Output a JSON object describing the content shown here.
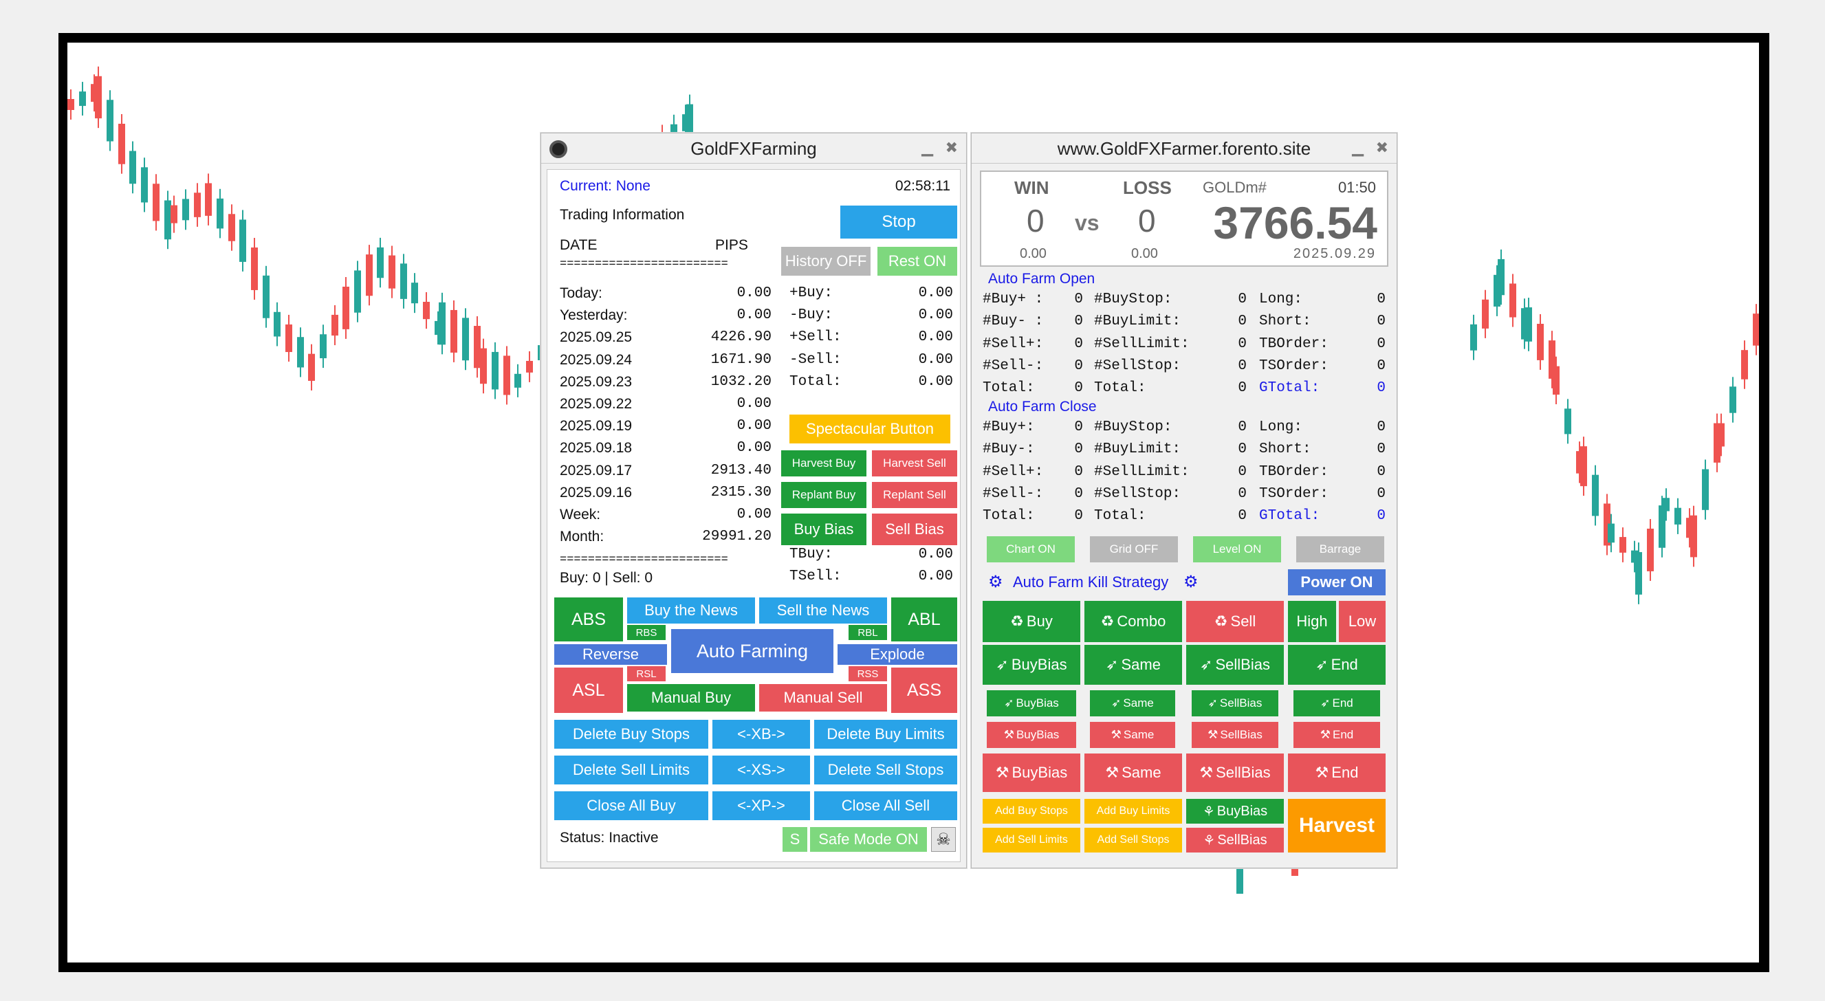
{
  "left_panel": {
    "title": "GoldFXFarming",
    "current": "Current: None",
    "time": "02:58:11",
    "trading_info": "Trading Information",
    "stop": "Stop",
    "col_date": "DATE",
    "col_pips": "PIPS",
    "separator": "========================",
    "history_btn": "History OFF",
    "rest_btn": "Rest ON",
    "rows": [
      {
        "label": "Today:",
        "value": "0.00"
      },
      {
        "label": "Yesterday:",
        "value": "0.00"
      },
      {
        "label": "2025.09.25",
        "value": "4226.90"
      },
      {
        "label": "2025.09.24",
        "value": "1671.90"
      },
      {
        "label": "2025.09.23",
        "value": "1032.20"
      },
      {
        "label": "2025.09.22",
        "value": "0.00"
      },
      {
        "label": "2025.09.19",
        "value": "0.00"
      },
      {
        "label": "2025.09.18",
        "value": "0.00"
      },
      {
        "label": "2025.09.17",
        "value": "2913.40"
      },
      {
        "label": "2025.09.16",
        "value": "2315.30"
      },
      {
        "label": "Week:",
        "value": "0.00"
      },
      {
        "label": "Month:",
        "value": "29991.20"
      }
    ],
    "right_stats": [
      {
        "label": "+Buy:",
        "value": "0.00"
      },
      {
        "label": "-Buy:",
        "value": "0.00"
      },
      {
        "label": "+Sell:",
        "value": "0.00"
      },
      {
        "label": "-Sell:",
        "value": "0.00"
      },
      {
        "label": "Total:",
        "value": "0.00"
      }
    ],
    "spectacular": "Spectacular Button",
    "harvest_buy": "Harvest Buy",
    "harvest_sell": "Harvest Sell",
    "replant_buy": "Replant Buy",
    "replant_sell": "Replant Sell",
    "buy_bias": "Buy Bias",
    "sell_bias": "Sell Bias",
    "tbuy_label": "TBuy:",
    "tbuy": "0.00",
    "tsell_label": "TSell:",
    "tsell": "0.00",
    "buy_sell": "Buy: 0 | Sell: 0",
    "abs": "ABS",
    "abl": "ABL",
    "asl": "ASL",
    "ass": "ASS",
    "buy_news": "Buy the News",
    "sell_news": "Sell the News",
    "rbs": "RBS",
    "rbl": "RBL",
    "rsl": "RSL",
    "rss": "RSS",
    "reverse": "Reverse",
    "explode": "Explode",
    "auto_farming": "Auto Farming",
    "manual_buy": "Manual Buy",
    "manual_sell": "Manual Sell",
    "del_buy_stops": "Delete Buy Stops",
    "xb": "<-XB->",
    "del_buy_limits": "Delete Buy Limits",
    "del_sell_limits": "Delete Sell Limits",
    "xs": "<-XS->",
    "del_sell_stops": "Delete Sell Stops",
    "close_all_buy": "Close All Buy",
    "xp": "<-XP->",
    "close_all_sell": "Close All Sell",
    "status": "Status: Inactive",
    "s_btn": "S",
    "safe_mode": "Safe Mode ON"
  },
  "right_panel": {
    "title": "www.GoldFXFarmer.forento.site",
    "win_label": "WIN",
    "loss_label": "LOSS",
    "symbol": "GOLDm#",
    "countdown": "01:50",
    "win": "0",
    "vs": "vs",
    "loss": "0",
    "price": "3766.54",
    "win_sub": "0.00",
    "loss_sub": "0.00",
    "date": "2025.09.29",
    "open_title": "Auto Farm Open",
    "close_title": "Auto Farm Close",
    "open_rows": [
      [
        "#Buy+ :",
        "0",
        "#BuyStop:",
        "0",
        "Long:",
        "0"
      ],
      [
        "#Buy- :",
        "0",
        "#BuyLimit:",
        "0",
        "Short:",
        "0"
      ],
      [
        "#Sell+:",
        "0",
        "#SellLimit:",
        "0",
        "TBOrder:",
        "0"
      ],
      [
        "#Sell-:",
        "0",
        "#SellStop:",
        "0",
        "TSOrder:",
        "0"
      ],
      [
        "Total:",
        "0",
        "Total:",
        "0",
        "GTotal:",
        "0"
      ]
    ],
    "close_rows": [
      [
        "#Buy+:",
        "0",
        "#BuyStop:",
        "0",
        "Long:",
        "0"
      ],
      [
        "#Buy-:",
        "0",
        "#BuyLimit:",
        "0",
        "Short:",
        "0"
      ],
      [
        "#Sell+:",
        "0",
        "#SellLimit:",
        "0",
        "TBOrder:",
        "0"
      ],
      [
        "#Sell-:",
        "0",
        "#SellStop:",
        "0",
        "TSOrder:",
        "0"
      ],
      [
        "Total:",
        "0",
        "Total:",
        "0",
        "GTotal:",
        "0"
      ]
    ],
    "chart_on": "Chart ON",
    "grid_off": "Grid OFF",
    "level_on": "Level ON",
    "barrage": "Barrage",
    "kill_strategy": "Auto Farm Kill Strategy",
    "power_on": "Power ON",
    "buy": "Buy",
    "combo": "Combo",
    "sell": "Sell",
    "high": "High",
    "low": "Low",
    "buybias": "BuyBias",
    "same": "Same",
    "sellbias": "SellBias",
    "end": "End",
    "add_buy_stops": "Add Buy Stops",
    "add_buy_limits": "Add Buy Limits",
    "add_sell_limits": "Add Sell Limits",
    "add_sell_stops": "Add Sell Stops",
    "harvest": "Harvest"
  }
}
